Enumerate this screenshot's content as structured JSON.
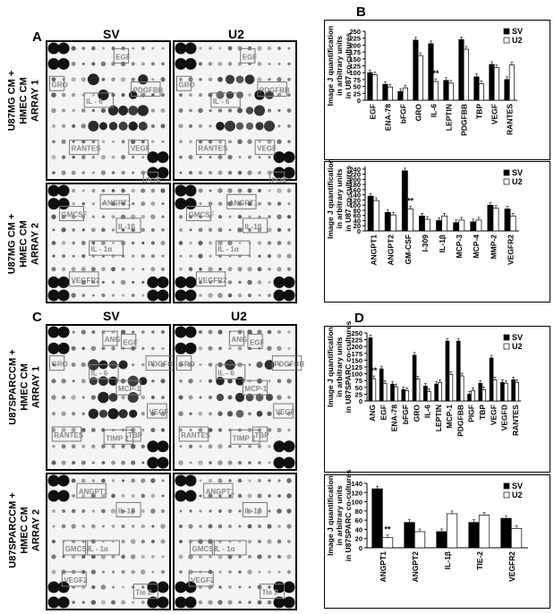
{
  "panels": {
    "A": "A",
    "B": "B",
    "C": "C",
    "D": "D",
    "sv": "SV",
    "u2": "U2"
  },
  "row_labels": {
    "a1": [
      "U87MG CM +",
      "HMEC CM",
      "ARRAY 1"
    ],
    "a2": [
      "U87MG CM +",
      "HMEC CM",
      "ARRAY 2"
    ],
    "c1": [
      "U87SPARCCM +",
      "HMEC CM",
      "ARRAY 1"
    ],
    "c2": [
      "U87SPARCCM +",
      "HMEC CM",
      "ARRAY 2"
    ]
  },
  "blot_labels": {
    "a1": [
      "GRO",
      "IL - 6",
      "EGF",
      "PDGFBB",
      "RANTES",
      "VEGF",
      "POS"
    ],
    "a2": [
      "GMCSF",
      "ANGPT1",
      "IL-1β",
      "IL - 1α",
      "VEGFR2"
    ],
    "c1": [
      "GRO",
      "IL - 6",
      "ANG",
      "EGF",
      "MCP-1",
      "PDGFBB",
      "RANTES",
      "TIMP 2",
      "TBP",
      "VEGF"
    ],
    "c2": [
      "ANGPT1",
      "IL-1β",
      "GMCSF",
      "IL - 1α",
      "VEGF2",
      "Tie 2"
    ]
  },
  "chart_data": [
    {
      "type": "bar",
      "panel": "B",
      "ylabel": "Image J quantification in arbitrary units in U87 co-cultures",
      "ylim": [
        0,
        250
      ],
      "yticks": [
        0,
        25,
        50,
        75,
        100,
        125,
        150,
        175,
        200,
        225,
        250
      ],
      "categories": [
        "EGF",
        "ENA-78",
        "bFGF",
        "GRO",
        "IL-6",
        "LEPTIN",
        "PDGFBB",
        "TBP",
        "VEGF",
        "RANTES"
      ],
      "series": [
        {
          "name": "SV",
          "color": "#000000",
          "values": [
            100,
            58,
            32,
            218,
            205,
            72,
            220,
            85,
            130,
            75
          ]
        },
        {
          "name": "U2",
          "color": "#ffffff",
          "values": [
            92,
            48,
            45,
            162,
            68,
            62,
            185,
            60,
            118,
            128
          ]
        }
      ],
      "legend": "top-right",
      "annotations": [
        "*",
        "**"
      ]
    },
    {
      "type": "bar",
      "panel": "B",
      "ylabel": "Image J quantification in arbitrary units in U87 co-cultures",
      "ylim": [
        0,
        250
      ],
      "yticks": [
        0,
        20,
        40,
        60,
        80,
        100,
        120,
        140,
        160,
        180,
        200,
        220,
        240
      ],
      "categories": [
        "ANGPT1",
        "ANGPT2",
        "GM-CSF",
        "I-309",
        "IL-1β",
        "MCP-3",
        "MCP-4",
        "MMP-2",
        "VEGFR2"
      ],
      "series": [
        {
          "name": "SV",
          "color": "#000000",
          "values": [
            135,
            72,
            233,
            58,
            40,
            32,
            35,
            100,
            85
          ]
        },
        {
          "name": "U2",
          "color": "#ffffff",
          "values": [
            118,
            62,
            85,
            45,
            58,
            42,
            42,
            88,
            58
          ]
        }
      ],
      "legend": "top-right",
      "annotations": [
        "**"
      ]
    },
    {
      "type": "bar",
      "panel": "D",
      "ylabel": "Image J quantification in arbitrary units in U87SPARC co-cultures",
      "ylim": [
        0,
        250
      ],
      "yticks": [
        0,
        25,
        50,
        75,
        100,
        125,
        150,
        175,
        200,
        225,
        250
      ],
      "categories": [
        "ANG",
        "EGF",
        "ENA-78",
        "bFGF",
        "GRO",
        "IL-6",
        "LEPTIN",
        "MCP-1",
        "PDGFBB",
        "PIGF",
        "TBP",
        "VEGF",
        "VEGFD",
        "RANTES"
      ],
      "series": [
        {
          "name": "SV",
          "color": "#000000",
          "values": [
            232,
            118,
            62,
            42,
            168,
            55,
            62,
            220,
            220,
            25,
            65,
            158,
            68,
            78
          ]
        },
        {
          "name": "U2",
          "color": "#ffffff",
          "values": [
            82,
            65,
            52,
            38,
            80,
            35,
            68,
            98,
            92,
            38,
            42,
            78,
            65,
            68
          ]
        }
      ],
      "legend": "top-right",
      "annotations": [
        "**"
      ]
    },
    {
      "type": "bar",
      "panel": "D",
      "ylabel": "Image J quantification in arbitrary units in U87SPARC co-cultures",
      "ylim": [
        0,
        140
      ],
      "yticks": [
        0,
        20,
        40,
        60,
        80,
        100,
        120,
        140
      ],
      "categories": [
        "ANGPT1",
        "ANGPT2",
        "IL-1β",
        "TIE-2",
        "VEGFR2"
      ],
      "series": [
        {
          "name": "SV",
          "color": "#000000",
          "values": [
            128,
            55,
            35,
            55,
            64
          ]
        },
        {
          "name": "U2",
          "color": "#ffffff",
          "values": [
            22,
            35,
            74,
            71,
            42
          ]
        }
      ],
      "legend": "top-right",
      "annotations": [
        "**"
      ]
    }
  ]
}
